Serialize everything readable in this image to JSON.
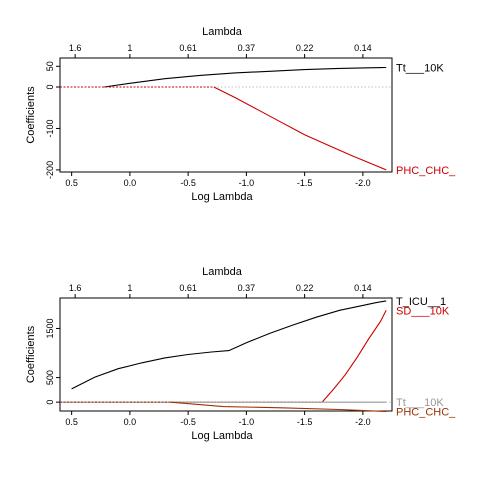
{
  "chart_data": [
    {
      "type": "line",
      "title": "",
      "xlabel": "Log Lambda",
      "ylabel": "Coefficients",
      "top_axis_label": "Lambda",
      "x_reversed": true,
      "xlim": [
        0.6,
        -2.25
      ],
      "ylim": [
        -205,
        70
      ],
      "x_ticks": [
        {
          "value": 0.5,
          "label": "0.5"
        },
        {
          "value": 0.0,
          "label": "0.0"
        },
        {
          "value": -0.5,
          "label": "-0.5"
        },
        {
          "value": -1.0,
          "label": "-1.0"
        },
        {
          "value": -1.5,
          "label": "-1.5"
        },
        {
          "value": -2.0,
          "label": "-2.0"
        }
      ],
      "y_ticks": [
        {
          "value": 50,
          "label": "50"
        },
        {
          "value": 0,
          "label": "0"
        },
        {
          "value": -100,
          "label": "-100"
        },
        {
          "value": -200,
          "label": "-200"
        }
      ],
      "top_ticks": [
        {
          "value": 0.47,
          "label": "1.6"
        },
        {
          "value": 0.0,
          "label": "1"
        },
        {
          "value": -0.5,
          "label": "0.61"
        },
        {
          "value": -1.0,
          "label": "0.37"
        },
        {
          "value": -1.5,
          "label": "0.22"
        },
        {
          "value": -2.0,
          "label": "0.14"
        }
      ],
      "zero_line": true,
      "series": [
        {
          "name": "Tt___10K",
          "color": "#000000",
          "dashed_segment_end": 0.22,
          "points": [
            [
              0.6,
              0
            ],
            [
              0.22,
              0
            ],
            [
              0.0,
              9
            ],
            [
              -0.3,
              20
            ],
            [
              -0.6,
              28
            ],
            [
              -0.9,
              34
            ],
            [
              -1.2,
              38
            ],
            [
              -1.5,
              42
            ],
            [
              -1.8,
              45
            ],
            [
              -2.0,
              46
            ],
            [
              -2.2,
              47
            ]
          ]
        },
        {
          "name": "PHC_CHC_",
          "color": "#cc0000",
          "dashed_segment_end": -0.72,
          "points": [
            [
              0.6,
              0
            ],
            [
              -0.72,
              0
            ],
            [
              -0.9,
              -25
            ],
            [
              -1.1,
              -55
            ],
            [
              -1.3,
              -85
            ],
            [
              -1.5,
              -115
            ],
            [
              -1.7,
              -140
            ],
            [
              -1.9,
              -165
            ],
            [
              -2.1,
              -188
            ],
            [
              -2.2,
              -200
            ]
          ]
        }
      ]
    },
    {
      "type": "line",
      "title": "",
      "xlabel": "Log Lambda",
      "ylabel": "Coefficients",
      "top_axis_label": "Lambda",
      "x_reversed": true,
      "xlim": [
        0.6,
        -2.25
      ],
      "ylim": [
        -180,
        2120
      ],
      "x_ticks": [
        {
          "value": 0.5,
          "label": "0.5"
        },
        {
          "value": 0.0,
          "label": "0.0"
        },
        {
          "value": -0.5,
          "label": "-0.5"
        },
        {
          "value": -1.0,
          "label": "-1.0"
        },
        {
          "value": -1.5,
          "label": "-1.5"
        },
        {
          "value": -2.0,
          "label": "-2.0"
        }
      ],
      "y_ticks": [
        {
          "value": 1500,
          "label": "1500"
        },
        {
          "value": 500,
          "label": "500"
        },
        {
          "value": 0,
          "label": "0"
        }
      ],
      "top_ticks": [
        {
          "value": 0.47,
          "label": "1.6"
        },
        {
          "value": 0.0,
          "label": "1"
        },
        {
          "value": -0.5,
          "label": "0.61"
        },
        {
          "value": -1.0,
          "label": "0.37"
        },
        {
          "value": -1.5,
          "label": "0.22"
        },
        {
          "value": -2.0,
          "label": "0.14"
        }
      ],
      "zero_line": true,
      "series": [
        {
          "name": "T_ICU__1",
          "color": "#000000",
          "dashed_segment_end": null,
          "points": [
            [
              0.5,
              270
            ],
            [
              0.3,
              510
            ],
            [
              0.1,
              680
            ],
            [
              -0.1,
              800
            ],
            [
              -0.3,
              900
            ],
            [
              -0.5,
              970
            ],
            [
              -0.7,
              1020
            ],
            [
              -0.85,
              1050
            ],
            [
              -1.0,
              1210
            ],
            [
              -1.2,
              1400
            ],
            [
              -1.4,
              1570
            ],
            [
              -1.6,
              1730
            ],
            [
              -1.8,
              1870
            ],
            [
              -2.0,
              1970
            ],
            [
              -2.1,
              2020
            ],
            [
              -2.2,
              2060
            ]
          ]
        },
        {
          "name": "SD___10K",
          "color": "#cc0000",
          "dashed_segment_end": -1.65,
          "points": [
            [
              0.6,
              0
            ],
            [
              -1.65,
              0
            ],
            [
              -1.75,
              270
            ],
            [
              -1.85,
              560
            ],
            [
              -1.95,
              910
            ],
            [
              -2.05,
              1290
            ],
            [
              -2.15,
              1640
            ],
            [
              -2.2,
              1870
            ]
          ]
        },
        {
          "name": "Tt___10K",
          "color": "#999999",
          "dashed_segment_end": 0.6,
          "points": [
            [
              0.6,
              0
            ],
            [
              -2.2,
              0
            ]
          ]
        },
        {
          "name": "PHC_CHC_",
          "color": "#993300",
          "dashed_segment_end": -0.35,
          "points": [
            [
              0.6,
              0
            ],
            [
              -0.35,
              0
            ],
            [
              -0.8,
              -90
            ],
            [
              -1.3,
              -115
            ],
            [
              -1.8,
              -150
            ],
            [
              -2.2,
              -190
            ]
          ]
        }
      ]
    }
  ]
}
